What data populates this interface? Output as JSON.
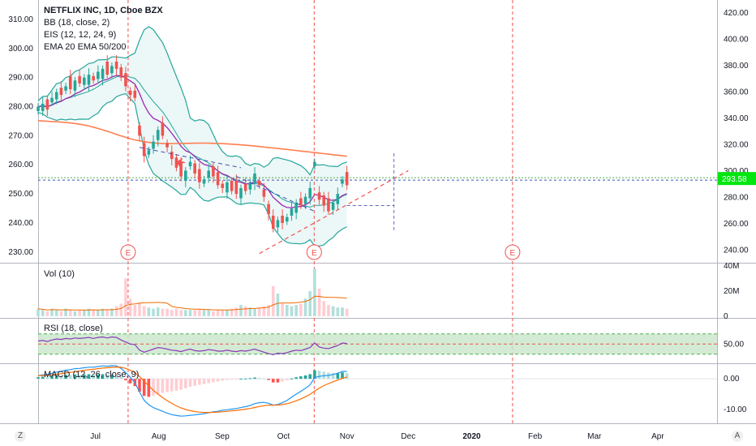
{
  "legend": {
    "main": [
      "NETFLIX INC, 1D, Cboe BZX",
      "BB (18, close, 2)",
      "EIS (12, 12, 24, 9)",
      "EMA 20 EMA 50/200"
    ],
    "vol": "Vol (10)",
    "rsi": "RSI (18, close)",
    "macd": "MACD (12, 26, close, 9)"
  },
  "price_badge": "293.58",
  "nav": {
    "left_button": "Z",
    "right_button": "A"
  },
  "colors": {
    "up": "#26a69a",
    "down": "#ef5350",
    "bb": "#26a69a",
    "bb_fill": "#e0f2f1",
    "ema20": "#9c27b0",
    "ema200": "#ff7f50",
    "rsi": "#8a3ab9",
    "rsi_band": "#c8e6c9",
    "macd_line": "#2196f3",
    "signal_line": "#ff6d00",
    "badge": "#00e60e"
  },
  "chart_data": [
    {
      "type": "candlestick",
      "title": "NETFLIX INC, 1D, Cboe BZX",
      "x_tick_labels": [
        "Jul",
        "Aug",
        "Sep",
        "Oct",
        "Nov",
        "Dec",
        "2020",
        "Feb",
        "Mar",
        "Apr"
      ],
      "left_axis_ticks": [
        "310.00",
        "300.00",
        "290.00",
        "280.00",
        "270.00",
        "260.00",
        "250.00",
        "240.00",
        "230.00"
      ],
      "right_axis_ticks": [
        "420.00",
        "400.00",
        "380.00",
        "360.00",
        "340.00",
        "320.00",
        "300.00",
        "280.00",
        "260.00",
        "240.00"
      ],
      "ylim_left": [
        228,
        315
      ],
      "ylim_right": [
        234,
        426
      ],
      "x_start": "2019-06-03",
      "x_end": "2020-04-30",
      "earnings_markers": [
        {
          "date": "2019-07-17",
          "label": "E"
        },
        {
          "date": "2019-10-16",
          "label": "E"
        },
        {
          "date": "2020-01-21",
          "label": "E"
        }
      ],
      "candles_close_left_scale": [
        280,
        281,
        279,
        283,
        285,
        284,
        287,
        286,
        289,
        288,
        290,
        291,
        289,
        292,
        293,
        291,
        294,
        293,
        290,
        287,
        284,
        283,
        270,
        263,
        265,
        268,
        272,
        270,
        266,
        262,
        259,
        256,
        258,
        261,
        257,
        254,
        255,
        258,
        256,
        253,
        252,
        254,
        251,
        250,
        252,
        251,
        254,
        257,
        253,
        249,
        243,
        238,
        241,
        240,
        242,
        245,
        247,
        246,
        249,
        252,
        261,
        248,
        246,
        244,
        247,
        250,
        255,
        253
      ],
      "candles_up": [
        true,
        true,
        false,
        true,
        true,
        false,
        true,
        false,
        true,
        false,
        true,
        true,
        false,
        true,
        true,
        false,
        true,
        false,
        false,
        false,
        false,
        false,
        false,
        false,
        true,
        true,
        true,
        false,
        false,
        false,
        false,
        false,
        true,
        true,
        false,
        false,
        true,
        true,
        false,
        false,
        false,
        true,
        false,
        false,
        true,
        false,
        true,
        true,
        false,
        false,
        false,
        false,
        true,
        false,
        true,
        true,
        true,
        false,
        true,
        true,
        true,
        false,
        false,
        false,
        true,
        true,
        true,
        false
      ],
      "last_price": "293.58",
      "horizontal_level_right_scale": 293.58
    },
    {
      "type": "bar",
      "title": "Vol (10)",
      "y_tick_labels": [
        "40M",
        "20M",
        "0"
      ],
      "ylim": [
        0,
        40000000
      ],
      "values_millions": [
        6,
        5,
        4,
        6,
        5,
        4,
        6,
        5,
        4,
        5,
        5,
        6,
        5,
        5,
        6,
        5,
        6,
        8,
        10,
        30,
        14,
        9,
        11,
        8,
        7,
        6,
        7,
        6,
        6,
        5,
        6,
        5,
        5,
        5,
        5,
        6,
        5,
        5,
        4,
        5,
        5,
        5,
        6,
        7,
        9,
        8,
        7,
        6,
        7,
        8,
        9,
        24,
        18,
        10,
        9,
        8,
        9,
        10,
        14,
        20,
        38,
        22,
        12,
        9,
        8,
        7,
        7,
        6
      ]
    },
    {
      "type": "line",
      "title": "RSI (18, close)",
      "y_tick_labels": [
        "50.00"
      ],
      "band": [
        30,
        70
      ],
      "band_lines": [
        70,
        50,
        30
      ],
      "values": [
        56,
        57,
        55,
        58,
        60,
        59,
        61,
        60,
        62,
        61,
        62,
        63,
        61,
        63,
        64,
        62,
        64,
        63,
        58,
        54,
        50,
        49,
        38,
        34,
        37,
        40,
        43,
        42,
        40,
        38,
        37,
        35,
        38,
        40,
        37,
        36,
        37,
        39,
        38,
        36,
        36,
        38,
        36,
        35,
        37,
        36,
        38,
        40,
        37,
        34,
        31,
        29,
        32,
        31,
        33,
        36,
        38,
        37,
        40,
        43,
        52,
        44,
        42,
        41,
        44,
        47,
        52,
        51
      ]
    },
    {
      "type": "bar",
      "title": "MACD (12, 26, close, 9)",
      "y_tick_labels": [
        "0.00",
        "-10.00"
      ],
      "ylim": [
        -14,
        4
      ],
      "histogram": [
        0.5,
        0.7,
        0.6,
        0.9,
        1.1,
        1.0,
        1.3,
        1.2,
        1.4,
        1.3,
        1.4,
        1.5,
        1.3,
        1.4,
        1.5,
        1.3,
        1.4,
        1.2,
        0.6,
        -0.5,
        -1.5,
        -2.4,
        -4.2,
        -5.6,
        -5.9,
        -5.6,
        -5.0,
        -4.6,
        -4.3,
        -4.1,
        -3.9,
        -3.6,
        -3.1,
        -2.6,
        -2.3,
        -2.0,
        -1.7,
        -1.4,
        -1.1,
        -0.9,
        -0.6,
        -0.4,
        -0.3,
        -0.2,
        0.0,
        0.1,
        0.2,
        0.4,
        0.3,
        0.1,
        -0.4,
        -1.2,
        -1.2,
        -0.9,
        -0.5,
        0.1,
        0.5,
        0.8,
        1.1,
        1.5,
        2.8,
        2.6,
        2.3,
        2.0,
        1.9,
        1.9,
        2.1,
        1.8
      ],
      "macd": [
        1.0,
        1.3,
        1.4,
        1.8,
        2.2,
        2.4,
        2.8,
        3.0,
        3.3,
        3.4,
        3.6,
        3.8,
        3.8,
        4.0,
        4.2,
        4.1,
        4.3,
        4.2,
        3.4,
        2.0,
        0.5,
        -1.2,
        -4.3,
        -7.0,
        -8.5,
        -9.4,
        -10.0,
        -10.6,
        -11.2,
        -11.7,
        -12.0,
        -12.2,
        -12.1,
        -11.9,
        -11.8,
        -11.6,
        -11.4,
        -11.1,
        -10.8,
        -10.6,
        -10.3,
        -10.1,
        -9.9,
        -9.7,
        -9.4,
        -9.1,
        -8.7,
        -8.1,
        -7.8,
        -7.7,
        -8.0,
        -8.6,
        -8.4,
        -7.8,
        -7.1,
        -6.0,
        -5.0,
        -4.1,
        -3.1,
        -2.0,
        0.4,
        0.8,
        1.0,
        1.1,
        1.4,
        1.8,
        2.4,
        2.4
      ]
    }
  ]
}
